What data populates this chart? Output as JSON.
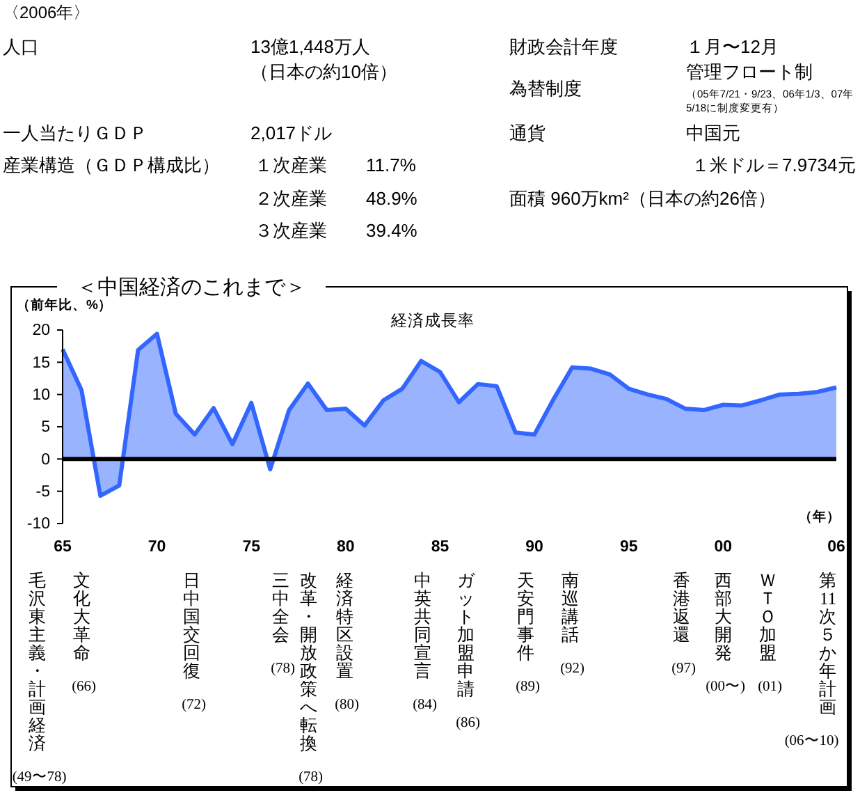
{
  "chart_data": [
    {
      "type": "other",
      "title": "〈2006年〉",
      "annotations": [
        "人口",
        "13億1,448万人",
        "（日本の約10倍）",
        "財政会計年度",
        "１月〜12月",
        "為替制度",
        "管理フロート制",
        "（05年7/21・9/23、06年1/3、07年5/18に制度変更有）",
        "一人当たりＧＤＰ",
        "2,017ドル",
        "通貨",
        "中国元",
        "産業構造（ＧＤＰ構成比）",
        "１次産業",
        "11.7%",
        "１米ドル＝7.9734元",
        "２次産業",
        "48.9%",
        "面積 960万km²（日本の約26倍）",
        "３次産業",
        "39.4%"
      ]
    },
    {
      "type": "area",
      "title": "＜中国経済のこれまで＞",
      "ylabel": "（前年比、%）",
      "xlabel": "（年）",
      "x": [
        1965,
        1966,
        1967,
        1968,
        1969,
        1970,
        1971,
        1972,
        1973,
        1974,
        1975,
        1976,
        1977,
        1978,
        1979,
        1980,
        1981,
        1982,
        1983,
        1984,
        1985,
        1986,
        1987,
        1988,
        1989,
        1990,
        1991,
        1992,
        1993,
        1994,
        1995,
        1996,
        1997,
        1998,
        1999,
        2000,
        2001,
        2002,
        2003,
        2004,
        2005,
        2006
      ],
      "series": [
        {
          "name": "経済成長率",
          "color": "#3366ff",
          "values": [
            17.0,
            10.7,
            -5.7,
            -4.1,
            16.9,
            19.4,
            7.0,
            3.8,
            7.9,
            2.3,
            8.7,
            -1.6,
            7.6,
            11.7,
            7.6,
            7.8,
            5.2,
            9.1,
            10.9,
            15.2,
            13.5,
            8.8,
            11.6,
            11.3,
            4.1,
            3.8,
            9.2,
            14.2,
            14.0,
            13.1,
            10.9,
            10.0,
            9.3,
            7.8,
            7.6,
            8.4,
            8.3,
            9.1,
            10.0,
            10.1,
            10.4,
            11.1
          ]
        }
      ],
      "xlim": [
        1965,
        2006
      ],
      "xticks": [
        {
          "value": 1965,
          "label": "65"
        },
        {
          "value": 1970,
          "label": "70"
        },
        {
          "value": 1975,
          "label": "75"
        },
        {
          "value": 1980,
          "label": "80"
        },
        {
          "value": 1985,
          "label": "85"
        },
        {
          "value": 1990,
          "label": "90"
        },
        {
          "value": 1995,
          "label": "95"
        },
        {
          "value": 2000,
          "label": "00"
        },
        {
          "value": 2006,
          "label": "06"
        }
      ],
      "ylim": [
        -10,
        20
      ],
      "yticks": [
        -10,
        -5,
        0,
        5,
        10,
        15,
        20
      ],
      "ref_lines": [
        {
          "axis": "y",
          "value": 0,
          "color": "#000000"
        }
      ],
      "annotations": [
        "毛沢東主義・計画経済 (49〜78)",
        "文化大革命 (66)",
        "日中国交回復 (72)",
        "三中全会 (78)",
        "改革・開放政策へ転換 (78)",
        "経済特区設置 (80)",
        "中英共同宣言 (84)",
        "ガット加盟申請 (86)",
        "天安門事件 (89)",
        "南巡講話 (92)",
        "香港返還 (97)",
        "西部大開発 (00〜)",
        "ＷＴＯ加盟 (01)",
        "第11次５か年計画 (06〜10)"
      ]
    }
  ]
}
